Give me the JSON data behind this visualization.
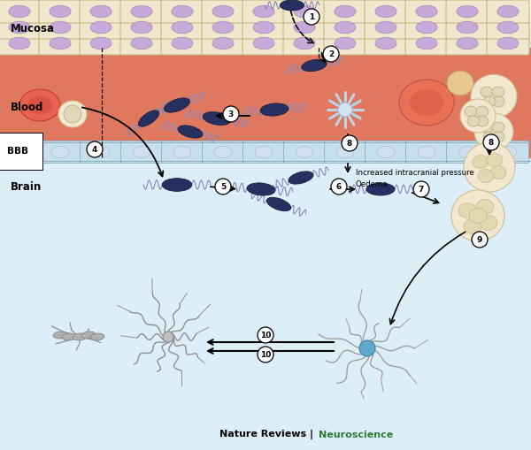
{
  "journal_text": "Nature Reviews | ",
  "journal_highlight": "Neuroscience",
  "journal_color": "#2e7d32",
  "mucosa_label": "Mucosa",
  "blood_label": "Blood",
  "bbb_label": "BBB",
  "brain_label": "Brain",
  "annotation_text": "Increased intracranial pressure\nOedema",
  "bg_top_light": "#f5efe0",
  "bg_top_mid": "#e8dcc0",
  "bg_blood": "#e07860",
  "bg_bbb": "#c0d8e8",
  "bg_brain": "#dceef8",
  "cell_fc": "#f0e8cc",
  "cell_ec": "#c8b888",
  "nucleus_fc": "#c8aad8",
  "nucleus_ec": "#a888b8",
  "bacteria_fc": "#253060",
  "bacteria_ec": "#182040",
  "flagella_color": "#8888bb",
  "rbc_fc": "#e06040",
  "rbc_inner": "#b84030",
  "wbc_fc": "#f0e8d0",
  "wbc_ec": "#c8b890",
  "bbb_cell_fc": "#c8e0ee",
  "bbb_cell_ec": "#90b8cc",
  "fig_width": 6.0,
  "fig_height": 5.09
}
